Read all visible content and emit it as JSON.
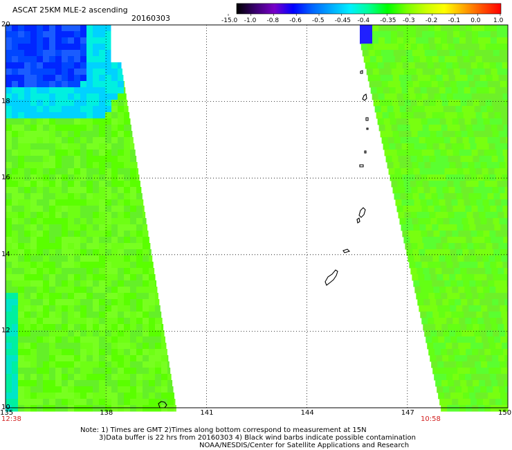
{
  "header": {
    "title": "ASCAT 25KM MLE-2 ascending",
    "date": "20160303"
  },
  "colorbar": {
    "labels": [
      "-15.0",
      "-1.0",
      "-0.8",
      "-0.6",
      "-0.5",
      "-0.45",
      "-0.4",
      "-0.35",
      "-0.3",
      "-0.2",
      "-0.1",
      "0.0",
      "1.0"
    ],
    "colors": [
      "#000000",
      "#3a0070",
      "#7800c8",
      "#0000ff",
      "#0064ff",
      "#00aaff",
      "#00f0ff",
      "#00ff96",
      "#00ff00",
      "#78ff00",
      "#c8ff00",
      "#ffff00",
      "#ffaa00",
      "#ff5000",
      "#ff0000"
    ]
  },
  "map": {
    "lat_labels": [
      "20",
      "18",
      "16",
      "14",
      "12",
      "10"
    ],
    "lon_labels": [
      "135",
      "138",
      "141",
      "144",
      "147",
      "150"
    ],
    "lat_range": [
      10,
      20
    ],
    "lon_range": [
      135,
      150
    ]
  },
  "times": {
    "left": "12:38",
    "right": "10:58"
  },
  "footer": {
    "line1": "Note: 1) Times are GMT 2)Times along bottom correspond to measurement at 15N",
    "line2": "3)Data buffer is 22 hrs from 20160303 4) Black wind barbs indicate possible contamination",
    "line3": "NOAA/NESDIS/Center for Satellite Applications and Research"
  }
}
